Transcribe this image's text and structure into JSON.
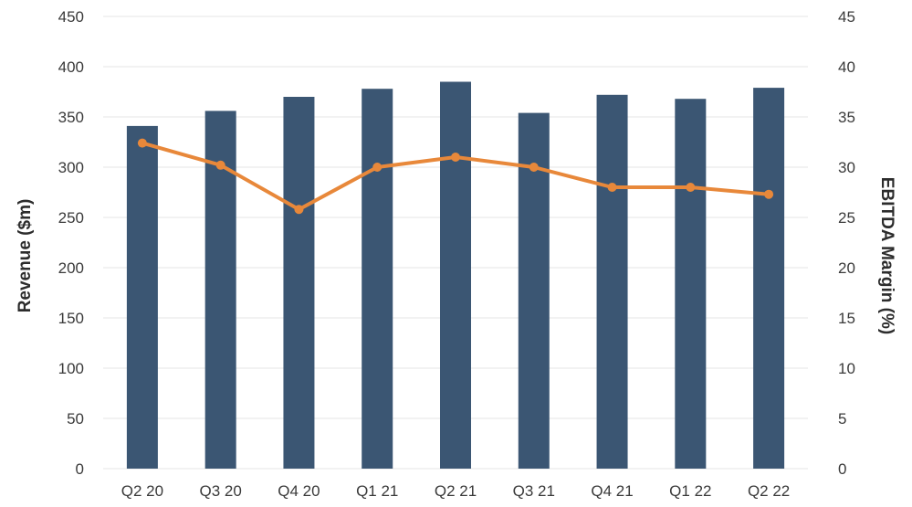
{
  "chart_data": {
    "type": "bar",
    "categories": [
      "Q2 20",
      "Q3 20",
      "Q4 20",
      "Q1 21",
      "Q2 21",
      "Q3 21",
      "Q4 21",
      "Q1 22",
      "Q2 22"
    ],
    "series": [
      {
        "type": "bar",
        "axis": "left",
        "values": [
          341,
          356,
          370,
          378,
          385,
          354,
          372,
          368,
          379
        ]
      },
      {
        "type": "line",
        "axis": "right",
        "values": [
          32.4,
          30.2,
          25.8,
          30.0,
          31.0,
          30.0,
          28.0,
          28.0,
          27.3
        ]
      }
    ],
    "ylabel": "Revenue ($m)",
    "y2label": "EBITDA  Margin (%)",
    "ylim": [
      0,
      450
    ],
    "y2lim": [
      0,
      45
    ],
    "yticks": [
      "0",
      "50",
      "100",
      "150",
      "200",
      "250",
      "300",
      "350",
      "400",
      "450"
    ],
    "y2ticks": [
      "0",
      "5",
      "10",
      "15",
      "20",
      "25",
      "30",
      "35",
      "40",
      "45"
    ],
    "grid": true,
    "colors": {
      "bar": "#3b5673",
      "line": "#e8883a",
      "grid": "#e6e6e6"
    }
  }
}
